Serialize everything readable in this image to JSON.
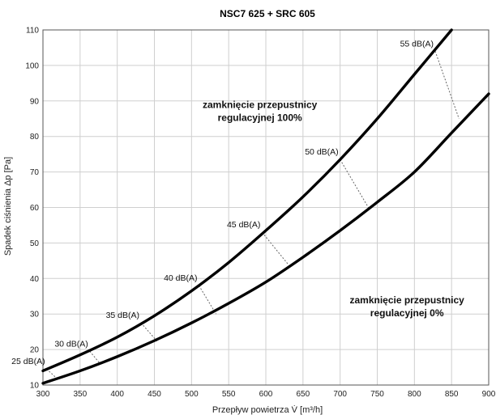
{
  "chart_data": {
    "type": "line",
    "title": "NSC7 625 + SRC 605",
    "xlabel": "Przepływ powietrza V̇ [m³/h]",
    "ylabel": "Spadek ciśnienia Δp [Pa]",
    "xlim": [
      300,
      900
    ],
    "ylim": [
      10,
      110
    ],
    "xticks": [
      300,
      350,
      400,
      450,
      500,
      550,
      600,
      650,
      700,
      750,
      800,
      850,
      900
    ],
    "yticks": [
      10,
      20,
      30,
      40,
      50,
      60,
      70,
      80,
      90,
      100,
      110
    ],
    "grid": true,
    "series": [
      {
        "name": "zamknięcie przepustnicy regulacyjnej 100%",
        "x": [
          300,
          350,
          400,
          450,
          500,
          550,
          600,
          650,
          700,
          750,
          800,
          850
        ],
        "y": [
          14,
          18.5,
          23.5,
          29.5,
          36.5,
          44.5,
          53.5,
          63,
          73.5,
          85,
          97.5,
          110
        ]
      },
      {
        "name": "zamknięcie przepustnicy regulacyjnej 0%",
        "x": [
          300,
          350,
          400,
          450,
          500,
          550,
          600,
          650,
          700,
          750,
          800,
          850,
          900
        ],
        "y": [
          10.5,
          14,
          18,
          22.5,
          27.5,
          33,
          39,
          46,
          53.5,
          61.5,
          70,
          81,
          92
        ]
      }
    ],
    "iso_lines": [
      {
        "label": "25 dB(A)",
        "from": [
          305,
          14.5
        ],
        "to": [
          318,
          12
        ]
      },
      {
        "label": "30 dB(A)",
        "from": [
          363,
          19.5
        ],
        "to": [
          377,
          16
        ]
      },
      {
        "label": "35 dB(A)",
        "from": [
          432,
          27.5
        ],
        "to": [
          455,
          22
        ]
      },
      {
        "label": "40 dB(A)",
        "from": [
          510,
          38
        ],
        "to": [
          533,
          30
        ]
      },
      {
        "label": "45 dB(A)",
        "from": [
          595,
          53
        ],
        "to": [
          630,
          44
        ]
      },
      {
        "label": "50 dB(A)",
        "from": [
          700,
          73.5
        ],
        "to": [
          738,
          60
        ]
      },
      {
        "label": "55 dB(A)",
        "from": [
          828,
          104
        ],
        "to": [
          860,
          85
        ]
      }
    ],
    "annotations": [
      {
        "lines": [
          "zamknięcie przepustnicy",
          "regulacyjnej 100%"
        ],
        "x": 592,
        "y": 88
      },
      {
        "lines": [
          "zamknięcie przepustnicy",
          "regulacyjnej 0%"
        ],
        "x": 790,
        "y": 33
      }
    ]
  }
}
